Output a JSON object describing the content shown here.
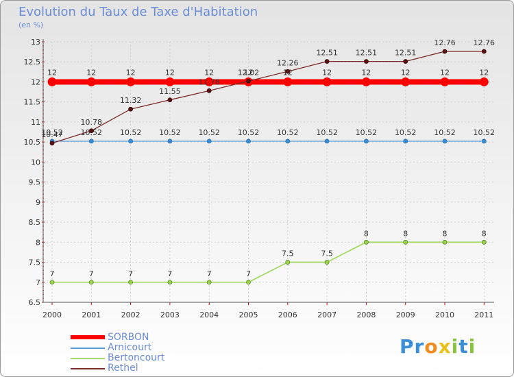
{
  "title": "Evolution du Taux de Taxe d'Habitation",
  "subtitle": "(en %)",
  "chart_data": {
    "type": "line",
    "title": "Evolution du Taux de Taxe d'Habitation",
    "ylabel": "(en %)",
    "xlabel": "",
    "x": [
      "2000",
      "2001",
      "2002",
      "2003",
      "2004",
      "2005",
      "2006",
      "2007",
      "2008",
      "2009",
      "2010",
      "2011"
    ],
    "ylim": [
      6.5,
      13
    ],
    "yticks": [
      "6.5",
      "7",
      "7.5",
      "8",
      "8.5",
      "9",
      "9.5",
      "10",
      "10.5",
      "11",
      "11.5",
      "12",
      "12.5",
      "13"
    ],
    "series": [
      {
        "name": "SORBON",
        "color": "#ff0000",
        "values": [
          12,
          12,
          12,
          12,
          12,
          12,
          12,
          12,
          12,
          12,
          12,
          12
        ],
        "labels": [
          "12",
          "12",
          "12",
          "12",
          "12",
          "12",
          "12",
          "12",
          "12",
          "12",
          "12",
          "12"
        ]
      },
      {
        "name": "Arnicourt",
        "color": "#5a9bd4",
        "values": [
          10.52,
          10.52,
          10.52,
          10.52,
          10.52,
          10.52,
          10.52,
          10.52,
          10.52,
          10.52,
          10.52,
          10.52
        ],
        "labels": [
          "10.52",
          "10.52",
          "10.52",
          "10.52",
          "10.52",
          "10.52",
          "10.52",
          "10.52",
          "10.52",
          "10.52",
          "10.52",
          "10.52"
        ]
      },
      {
        "name": "Bertoncourt",
        "color": "#a6d96a",
        "values": [
          7,
          7,
          7,
          7,
          7,
          7,
          7.5,
          7.5,
          8,
          8,
          8,
          8
        ],
        "labels": [
          "7",
          "7",
          "7",
          "7",
          "7",
          "7",
          "7.5",
          "7.5",
          "8",
          "8",
          "8",
          "8"
        ]
      },
      {
        "name": "Rethel",
        "color": "#7b2a2a",
        "values": [
          10.47,
          10.78,
          11.32,
          11.55,
          11.78,
          12.02,
          12.26,
          12.51,
          12.51,
          12.51,
          12.76,
          12.76
        ],
        "labels": [
          "10.47",
          "10.78",
          "11.32",
          "11.55",
          "11.78",
          "12.02",
          "12.26",
          "12.51",
          "12.51",
          "12.51",
          "12.76",
          "12.76"
        ]
      }
    ]
  },
  "legend": [
    {
      "name": "SORBON",
      "color": "#ff0000"
    },
    {
      "name": "Arnicourt",
      "color": "#5a9bd4"
    },
    {
      "name": "Bertoncourt",
      "color": "#a6d96a"
    },
    {
      "name": "Rethel",
      "color": "#7b2a2a"
    }
  ],
  "logo": {
    "text": "Proxiti",
    "letters": [
      {
        "char": "P",
        "color": "#3a8fd8"
      },
      {
        "char": "r",
        "color": "#3a8fd8"
      },
      {
        "char": "o",
        "color": "#f28b20"
      },
      {
        "char": "x",
        "color": "#e8c21a"
      },
      {
        "char": "i",
        "color": "#8ac43f"
      },
      {
        "char": "t",
        "color": "#3a8fd8"
      },
      {
        "char": "i",
        "color": "#8ac43f"
      }
    ]
  }
}
